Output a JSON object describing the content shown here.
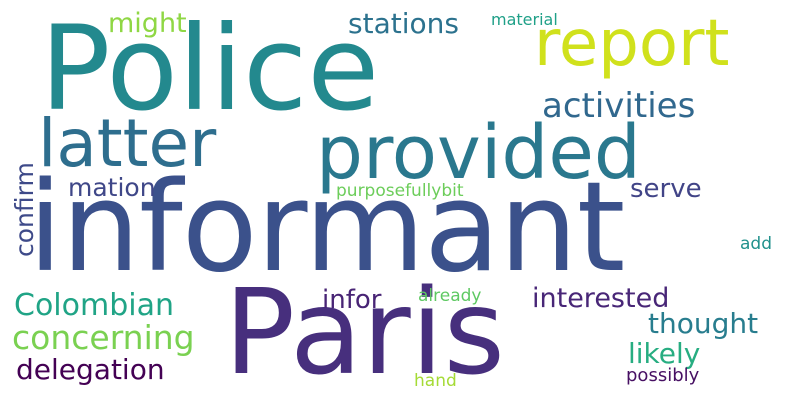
{
  "words": [
    {
      "key": "informant",
      "text": "informant",
      "color": "#3b518b"
    },
    {
      "key": "police",
      "text": "Police",
      "color": "#23898e"
    },
    {
      "key": "paris",
      "text": "Paris",
      "color": "#472f7d"
    },
    {
      "key": "provided",
      "text": "provided",
      "color": "#2a788e"
    },
    {
      "key": "latter",
      "text": "latter",
      "color": "#2e6e8e"
    },
    {
      "key": "report",
      "text": "report",
      "color": "#d0e11c"
    },
    {
      "key": "activities",
      "text": "activities",
      "color": "#31688e"
    },
    {
      "key": "colombian",
      "text": "Colombian",
      "color": "#20a486"
    },
    {
      "key": "concerning",
      "text": "concerning",
      "color": "#7ad151"
    },
    {
      "key": "delegation",
      "text": "delegation",
      "color": "#440154"
    },
    {
      "key": "interested",
      "text": "interested",
      "color": "#482677"
    },
    {
      "key": "thought",
      "text": "thought",
      "color": "#287d8e"
    },
    {
      "key": "likely",
      "text": "likely",
      "color": "#27ad81"
    },
    {
      "key": "stations",
      "text": "stations",
      "color": "#2c728e"
    },
    {
      "key": "might",
      "text": "might",
      "color": "#8fd744"
    },
    {
      "key": "confirm",
      "text": "confirm",
      "color": "#3e4a89"
    },
    {
      "key": "mation",
      "text": "mation",
      "color": "#3f4788"
    },
    {
      "key": "serve",
      "text": "serve",
      "color": "#414487"
    },
    {
      "key": "infor",
      "text": "infor",
      "color": "#482475"
    },
    {
      "key": "material",
      "text": "material",
      "color": "#1fa088"
    },
    {
      "key": "purposefullybit",
      "text": "purposefullybit",
      "color": "#6ccd5a"
    },
    {
      "key": "add",
      "text": "add",
      "color": "#21918c"
    },
    {
      "key": "already",
      "text": "already",
      "color": "#5ec962"
    },
    {
      "key": "hand",
      "text": "hand",
      "color": "#a5db36"
    },
    {
      "key": "possibly",
      "text": "possibly",
      "color": "#471063"
    }
  ]
}
